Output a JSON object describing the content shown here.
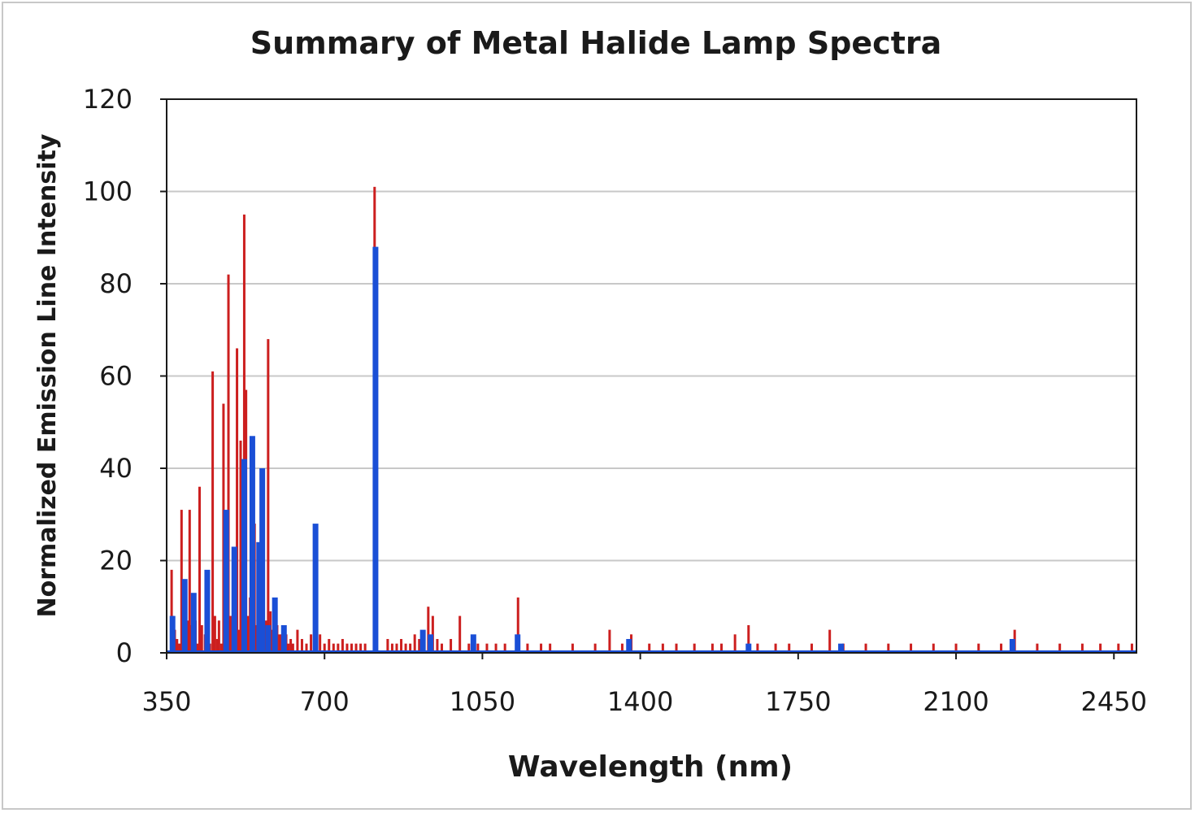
{
  "chart_data": {
    "type": "bar",
    "title": "Summary of Metal Halide Lamp Spectra",
    "xlabel": "Wavelength (nm)",
    "ylabel": "Normalized Emission Line Intensity",
    "xlim": [
      350,
      2500
    ],
    "ylim": [
      0,
      120
    ],
    "x_ticks": [
      "350",
      "700",
      "1050",
      "1400",
      "1750",
      "2100",
      "2450"
    ],
    "y_ticks": [
      "0",
      "20",
      "40",
      "60",
      "80",
      "100",
      "120"
    ],
    "grid": "horizontal",
    "legend": "none",
    "colors": {
      "red_series": "#cc1f1f",
      "blue_series": "#1a4fd6",
      "grid": "#c8c8c8",
      "axis": "#1a1a1a"
    },
    "series": [
      {
        "color": "#cc1f1f",
        "x": [
          361,
          364,
          368,
          373,
          378,
          383,
          387,
          392,
          396,
          401,
          405,
          410,
          414,
          418,
          423,
          428,
          435,
          440,
          446,
          452,
          457,
          462,
          466,
          471,
          476,
          481,
          487,
          492,
          497,
          502,
          506,
          510,
          514,
          518,
          522,
          526,
          530,
          535,
          540,
          545,
          550,
          555,
          560,
          565,
          570,
          575,
          580,
          585,
          590,
          595,
          600,
          605,
          610,
          615,
          620,
          625,
          630,
          640,
          650,
          660,
          670,
          680,
          690,
          700,
          710,
          720,
          730,
          740,
          750,
          760,
          770,
          780,
          790,
          811,
          840,
          850,
          860,
          870,
          880,
          890,
          900,
          910,
          920,
          930,
          940,
          950,
          960,
          980,
          1000,
          1020,
          1040,
          1060,
          1080,
          1100,
          1129,
          1150,
          1180,
          1200,
          1250,
          1300,
          1332,
          1360,
          1380,
          1420,
          1450,
          1480,
          1520,
          1560,
          1580,
          1610,
          1640,
          1660,
          1700,
          1730,
          1780,
          1820,
          1850,
          1900,
          1950,
          2000,
          2050,
          2100,
          2150,
          2200,
          2230,
          2280,
          2330,
          2380,
          2420,
          2460,
          2490
        ],
        "values": [
          18,
          8,
          5,
          3,
          2,
          31,
          5,
          9,
          7,
          31,
          6,
          4,
          7,
          2,
          36,
          6,
          4,
          8,
          2,
          61,
          8,
          3,
          7,
          2,
          54,
          6,
          82,
          8,
          5,
          6,
          66,
          5,
          46,
          11,
          95,
          57,
          8,
          12,
          27,
          28,
          6,
          11,
          10,
          8,
          7,
          68,
          9,
          5,
          7,
          6,
          4,
          4,
          3,
          4,
          2,
          3,
          2,
          5,
          3,
          2,
          4,
          3,
          4,
          2,
          3,
          2,
          2,
          3,
          2,
          2,
          2,
          2,
          2,
          101,
          3,
          2,
          2,
          3,
          2,
          2,
          4,
          3,
          2,
          10,
          8,
          3,
          2,
          3,
          8,
          2,
          2,
          2,
          2,
          2,
          12,
          2,
          2,
          2,
          2,
          2,
          5,
          2,
          4,
          2,
          2,
          2,
          2,
          2,
          2,
          4,
          6,
          2,
          2,
          2,
          2,
          5,
          2,
          2,
          2,
          2,
          2,
          2,
          2,
          2,
          5,
          2,
          2,
          2,
          2,
          2,
          2
        ]
      },
      {
        "color": "#1a4fd6",
        "x": [
          363,
          390,
          410,
          440,
          482,
          500,
          522,
          540,
          555,
          562,
          575,
          590,
          610,
          680,
          813,
          918,
          935,
          1030,
          1128,
          1375,
          1640,
          1845,
          2225
        ],
        "values": [
          8,
          16,
          13,
          18,
          31,
          23,
          42,
          47,
          24,
          40,
          6,
          12,
          6,
          28,
          88,
          5,
          4,
          4,
          4,
          3,
          2,
          2,
          3
        ]
      }
    ]
  }
}
